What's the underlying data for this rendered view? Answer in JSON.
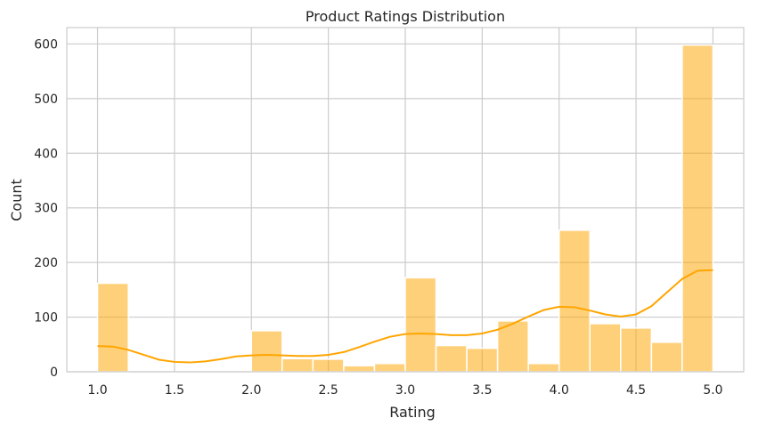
{
  "chart_data": {
    "type": "bar",
    "title": "Product Ratings Distribution",
    "xlabel": "Rating",
    "ylabel": "Count",
    "xlim": [
      0.8,
      5.2
    ],
    "ylim": [
      0,
      630
    ],
    "xticks": [
      "1.0",
      "1.5",
      "2.0",
      "2.5",
      "3.0",
      "3.5",
      "4.0",
      "4.5",
      "5.0"
    ],
    "yticks": [
      "0",
      "100",
      "200",
      "300",
      "400",
      "500",
      "600"
    ],
    "grid": true,
    "bins": [
      {
        "x0": 1.0,
        "x1": 1.2,
        "count": 162
      },
      {
        "x0": 1.2,
        "x1": 1.4,
        "count": 0
      },
      {
        "x0": 1.4,
        "x1": 1.6,
        "count": 0
      },
      {
        "x0": 1.6,
        "x1": 1.8,
        "count": 0
      },
      {
        "x0": 1.8,
        "x1": 2.0,
        "count": 0
      },
      {
        "x0": 2.0,
        "x1": 2.2,
        "count": 75
      },
      {
        "x0": 2.2,
        "x1": 2.4,
        "count": 24
      },
      {
        "x0": 2.4,
        "x1": 2.6,
        "count": 23
      },
      {
        "x0": 2.6,
        "x1": 2.8,
        "count": 11
      },
      {
        "x0": 2.8,
        "x1": 3.0,
        "count": 15
      },
      {
        "x0": 3.0,
        "x1": 3.2,
        "count": 172
      },
      {
        "x0": 3.2,
        "x1": 3.4,
        "count": 48
      },
      {
        "x0": 3.4,
        "x1": 3.6,
        "count": 43
      },
      {
        "x0": 3.6,
        "x1": 3.8,
        "count": 93
      },
      {
        "x0": 3.8,
        "x1": 4.0,
        "count": 15
      },
      {
        "x0": 4.0,
        "x1": 4.2,
        "count": 259
      },
      {
        "x0": 4.2,
        "x1": 4.4,
        "count": 88
      },
      {
        "x0": 4.4,
        "x1": 4.6,
        "count": 80
      },
      {
        "x0": 4.6,
        "x1": 4.8,
        "count": 54
      },
      {
        "x0": 4.8,
        "x1": 5.0,
        "count": 598
      }
    ],
    "kde": {
      "x": [
        1.0,
        1.1,
        1.2,
        1.3,
        1.4,
        1.5,
        1.6,
        1.7,
        1.8,
        1.9,
        2.0,
        2.1,
        2.2,
        2.3,
        2.4,
        2.5,
        2.6,
        2.7,
        2.8,
        2.9,
        3.0,
        3.1,
        3.2,
        3.3,
        3.4,
        3.5,
        3.6,
        3.7,
        3.8,
        3.9,
        4.0,
        4.1,
        4.2,
        4.3,
        4.4,
        4.5,
        4.6,
        4.7,
        4.8,
        4.9,
        5.0
      ],
      "y": [
        47,
        46,
        40,
        31,
        22,
        18,
        17,
        19,
        23,
        28,
        30,
        31,
        30,
        29,
        29,
        31,
        36,
        45,
        55,
        64,
        69,
        70,
        69,
        67,
        67,
        70,
        77,
        88,
        101,
        113,
        119,
        118,
        112,
        105,
        101,
        105,
        120,
        145,
        170,
        185,
        186
      ]
    },
    "colors": {
      "bar": "#ffa500",
      "kde": "#ffa500"
    }
  }
}
